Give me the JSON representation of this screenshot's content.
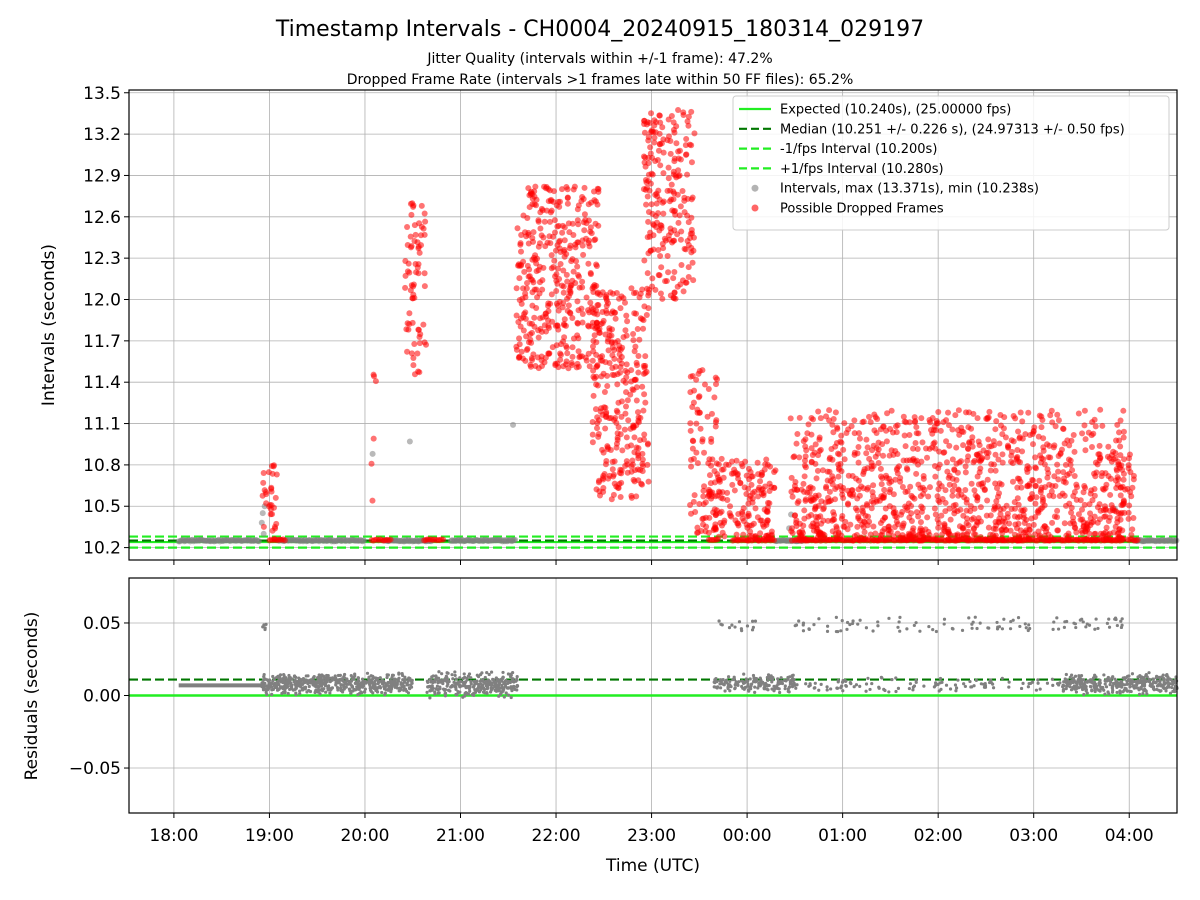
{
  "title": "Timestamp Intervals - CH0004_20240915_180314_029197",
  "subtitle1": "Jitter Quality (intervals within +/-1 frame): 47.2%",
  "subtitle2": "Dropped Frame Rate (intervals >1 frames late within 50 FF files): 65.2%",
  "colors": {
    "expected": "#22ee22",
    "median": "#007700",
    "interval": "#22ee22",
    "normal": "#808080",
    "dropped": "#ff0000"
  },
  "chart_data": [
    {
      "type": "scatter",
      "name": "intervals",
      "ylabel": "Intervals (seconds)",
      "xlabel": "",
      "ylim": [
        10.11,
        13.52
      ],
      "xlim_hours": [
        17.53,
        28.5
      ],
      "y_ticks": [
        "10.2",
        "10.5",
        "10.8",
        "11.1",
        "11.4",
        "11.7",
        "12.0",
        "12.3",
        "12.6",
        "12.9",
        "13.2",
        "13.5"
      ],
      "y_tick_values": [
        10.2,
        10.5,
        10.8,
        11.1,
        11.4,
        11.7,
        12.0,
        12.3,
        12.6,
        12.9,
        13.2,
        13.5
      ],
      "grid": true,
      "legend_position": "top-right",
      "legend": [
        {
          "label": "Expected (10.240s), (25.00000 fps)",
          "kind": "line",
          "color": "#22ee22",
          "dash": "none"
        },
        {
          "label": "Median (10.251 +/- 0.226 s), (24.97313 +/- 0.50 fps)",
          "kind": "line",
          "color": "#007700",
          "dash": "dashed"
        },
        {
          "label": "-1/fps Interval (10.200s)",
          "kind": "line",
          "color": "#22ee22",
          "dash": "dashed"
        },
        {
          "label": "+1/fps Interval (10.280s)",
          "kind": "line",
          "color": "#22ee22",
          "dash": "dashed"
        },
        {
          "label": "Intervals, max (13.371s), min (10.238s)",
          "kind": "dot",
          "color": "#808080"
        },
        {
          "label": "Possible Dropped Frames",
          "kind": "dot",
          "color": "#ff0000"
        }
      ],
      "hlines": {
        "expected": 10.24,
        "median": 10.251,
        "minus_fps": 10.2,
        "plus_fps": 10.28
      },
      "normal_segments_hours": [
        [
          18.05,
          18.9
        ],
        [
          19.1,
          20.0
        ],
        [
          20.2,
          20.7
        ],
        [
          20.9,
          21.58
        ],
        [
          24.3,
          24.6
        ],
        [
          28.05,
          28.5
        ]
      ],
      "normal_outliers": [
        {
          "x": 18.93,
          "y": 10.45
        },
        {
          "x": 18.95,
          "y": 10.5
        },
        {
          "x": 18.92,
          "y": 10.38
        },
        {
          "x": 18.94,
          "y": 10.3
        },
        {
          "x": 20.08,
          "y": 10.88
        },
        {
          "x": 20.47,
          "y": 10.97
        },
        {
          "x": 21.55,
          "y": 11.09
        },
        {
          "x": 24.46,
          "y": 10.44
        },
        {
          "x": 24.44,
          "y": 10.34
        },
        {
          "x": 27.85,
          "y": 10.48
        }
      ],
      "dropped_floor_segments_hours": [
        [
          19.0,
          19.18
        ],
        [
          20.07,
          20.27
        ],
        [
          20.62,
          20.82
        ],
        [
          23.6,
          23.7
        ],
        [
          23.85,
          24.3
        ],
        [
          24.5,
          27.95
        ],
        [
          27.98,
          28.1
        ]
      ],
      "dropped_clusters": [
        {
          "x_range": [
            18.92,
            19.08
          ],
          "y_range": [
            10.25,
            10.82
          ],
          "count": 30
        },
        {
          "x_range": [
            20.06,
            20.12
          ],
          "y_range": [
            10.45,
            11.82
          ],
          "count": 6
        },
        {
          "x_range": [
            20.42,
            20.65
          ],
          "y_range": [
            11.45,
            12.7
          ],
          "count": 70
        },
        {
          "x_range": [
            21.58,
            22.45
          ],
          "y_range": [
            11.5,
            12.82
          ],
          "count": 380
        },
        {
          "x_range": [
            22.38,
            22.97
          ],
          "y_range": [
            10.55,
            12.1
          ],
          "count": 290
        },
        {
          "x_range": [
            22.92,
            23.45
          ],
          "y_range": [
            12.0,
            13.38
          ],
          "count": 220
        },
        {
          "x_range": [
            23.4,
            23.7
          ],
          "y_range": [
            10.3,
            11.5
          ],
          "count": 80
        },
        {
          "x_range": [
            23.6,
            24.3
          ],
          "y_range": [
            10.25,
            10.85
          ],
          "count": 170
        },
        {
          "x_range": [
            24.45,
            27.95
          ],
          "y_range": [
            10.25,
            11.2
          ],
          "count": 1150
        },
        {
          "x_range": [
            27.85,
            28.05
          ],
          "y_range": [
            10.25,
            10.9
          ],
          "count": 40
        }
      ]
    },
    {
      "type": "scatter",
      "name": "residuals",
      "ylabel": "Residuals (seconds)",
      "xlabel": "Time (UTC)",
      "ylim": [
        -0.081,
        0.081
      ],
      "xlim_hours": [
        17.53,
        28.5
      ],
      "y_ticks": [
        "−0.05",
        "0.00",
        "0.05"
      ],
      "y_tick_values": [
        -0.05,
        0.0,
        0.05
      ],
      "x_ticks": [
        "18:00",
        "19:00",
        "20:00",
        "21:00",
        "22:00",
        "23:00",
        "00:00",
        "01:00",
        "02:00",
        "03:00",
        "04:00"
      ],
      "x_tick_hours": [
        18,
        19,
        20,
        21,
        22,
        23,
        24,
        25,
        26,
        27,
        28
      ],
      "grid": true,
      "hlines": {
        "zero": 0.0,
        "median": 0.011
      },
      "residual_flat_segment": {
        "x_range": [
          18.05,
          18.92
        ],
        "y": 0.007
      },
      "residual_low_clusters": [
        {
          "x_range": [
            18.92,
            20.5
          ],
          "y_range": [
            0.0,
            0.016
          ],
          "count": 520
        },
        {
          "x_range": [
            20.65,
            21.6
          ],
          "y_range": [
            -0.002,
            0.017
          ],
          "count": 300
        },
        {
          "x_range": [
            23.65,
            24.5
          ],
          "y_range": [
            0.001,
            0.015
          ],
          "count": 160
        },
        {
          "x_range": [
            24.5,
            27.3
          ],
          "y_range": [
            0.001,
            0.014
          ],
          "count": 110
        },
        {
          "x_range": [
            27.3,
            28.5
          ],
          "y_range": [
            0.0,
            0.016
          ],
          "count": 330
        }
      ],
      "residual_high_clusters": [
        {
          "x_range": [
            18.92,
            18.98
          ],
          "y_range": [
            0.045,
            0.051
          ],
          "count": 5
        },
        {
          "x_range": [
            23.7,
            24.1
          ],
          "y_range": [
            0.044,
            0.052
          ],
          "count": 14
        },
        {
          "x_range": [
            24.5,
            27.0
          ],
          "y_range": [
            0.044,
            0.054
          ],
          "count": 70
        },
        {
          "x_range": [
            27.2,
            27.95
          ],
          "y_range": [
            0.045,
            0.054
          ],
          "count": 30
        }
      ]
    }
  ]
}
